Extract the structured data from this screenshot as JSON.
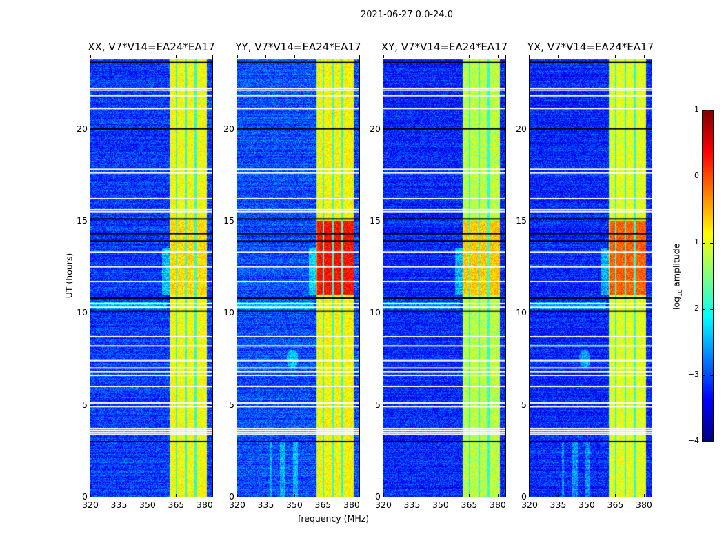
{
  "chart_data": {
    "type": "heatmap",
    "title": "2021-06-27 0.0-24.0",
    "xlabel": "frequency (MHz)",
    "ylabel": "UT (hours)",
    "xlim": [
      320,
      384
    ],
    "ylim": [
      0,
      24
    ],
    "xticks": [
      "320",
      "335",
      "350",
      "365",
      "380"
    ],
    "yticks": [
      "0",
      "5",
      "10",
      "15",
      "20"
    ],
    "panels": [
      {
        "title": "XX, V7*V14=EA24*EA17",
        "band_level": -0.9,
        "peak_level": -0.7,
        "background_level": -3.1
      },
      {
        "title": "YY, V7*V14=EA24*EA17",
        "band_level": -0.85,
        "peak_level": 0.3,
        "background_level": -3.0
      },
      {
        "title": "XY, V7*V14=EA24*EA17",
        "band_level": -1.2,
        "peak_level": -0.6,
        "background_level": -3.2
      },
      {
        "title": "YX, V7*V14=EA24*EA17",
        "band_level": -1.0,
        "peak_level": -0.1,
        "background_level": -3.2
      }
    ],
    "strong_band_mhz": [
      361.5,
      381
    ],
    "subband_edges_mhz": [
      365.2,
      370.2,
      375.2
    ],
    "peak_hours": [
      11,
      15
    ],
    "flagged_rows_white_hours": [
      22.1,
      22.2,
      21.8,
      21.1,
      17.8,
      17.6,
      16.2,
      15.6,
      15.5,
      13.3,
      12.5,
      11.7,
      10.5,
      10.3,
      8.7,
      8.2,
      7.4,
      7.0,
      6.8,
      6.6,
      6.0,
      5.1,
      4.9,
      3.7,
      3.6,
      3.5,
      3.4
    ],
    "flagged_rows_black_hours": [
      23.6,
      20.0,
      15.1,
      14.3,
      13.9,
      10.8,
      10.1,
      3.0
    ],
    "colorbar": {
      "colormap": "jet",
      "range": [
        -4,
        1
      ],
      "ticks": [
        "1",
        "0",
        "−1",
        "−2",
        "−3",
        "−4"
      ],
      "label_prefix": "log",
      "label_subscript": "10",
      "label_suffix": " amplitude"
    }
  }
}
